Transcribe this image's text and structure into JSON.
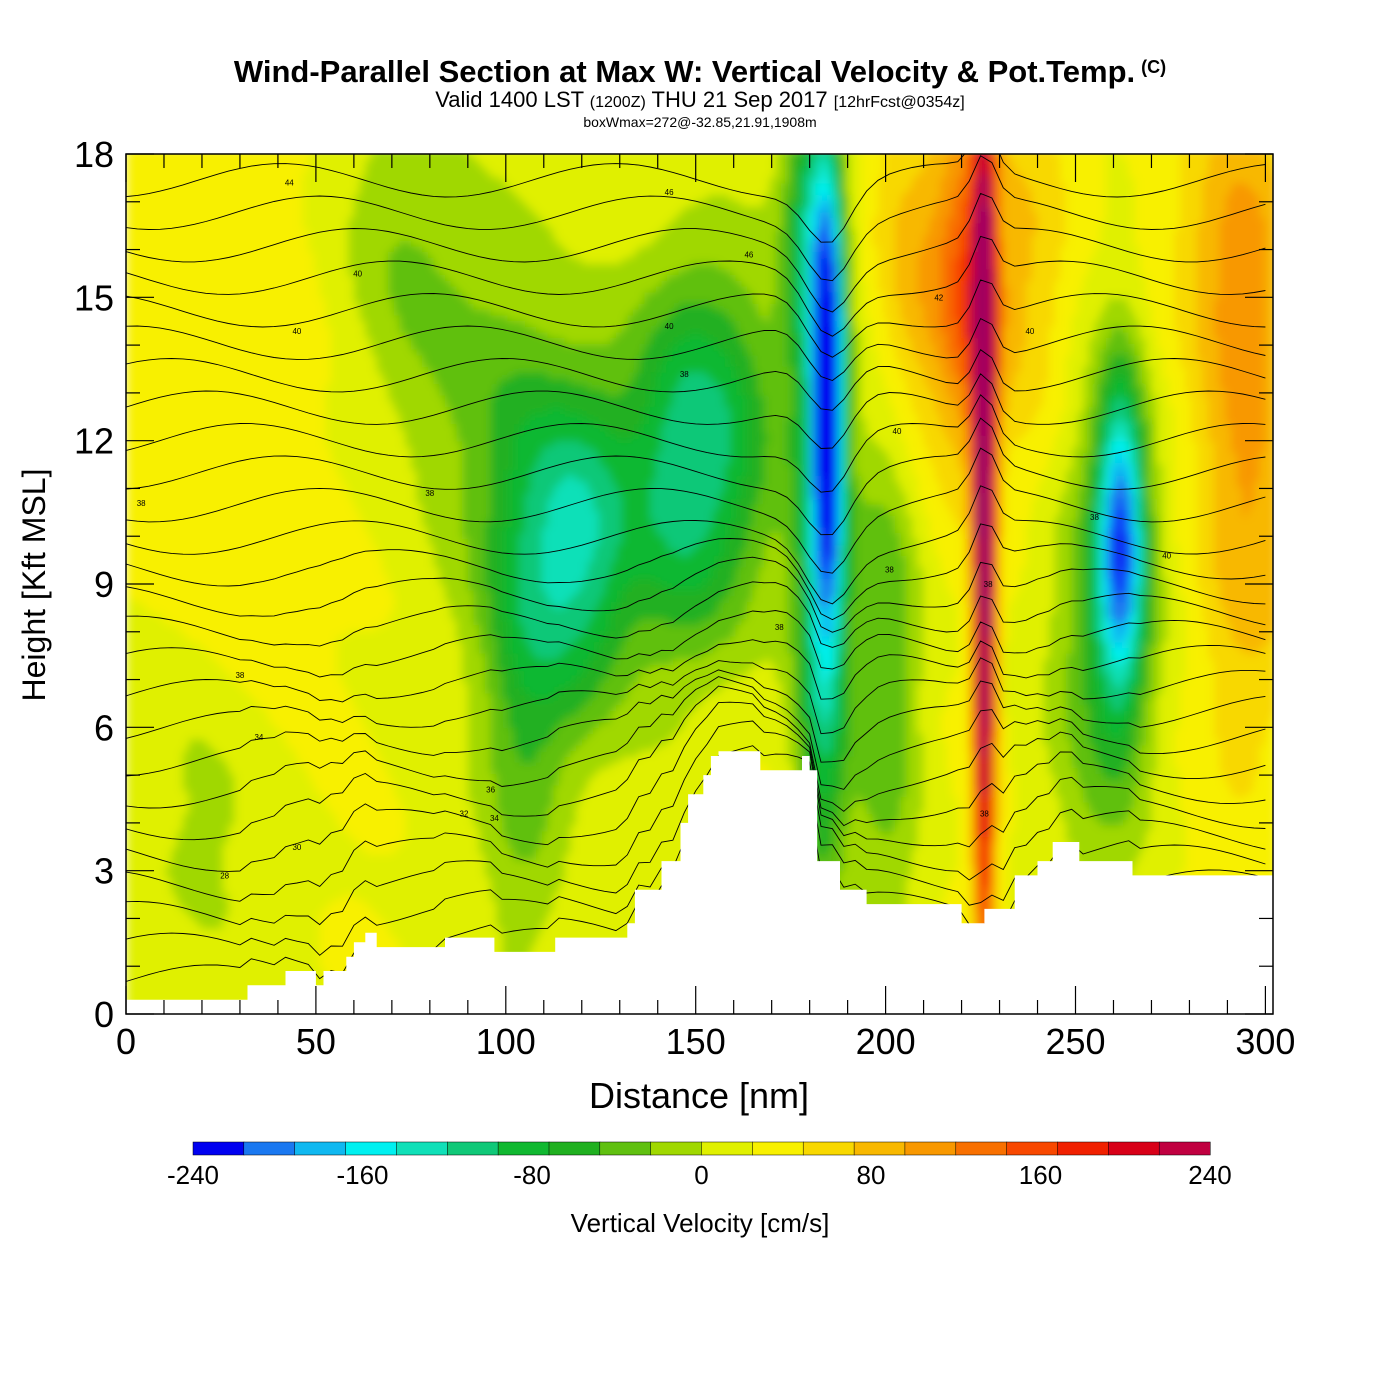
{
  "header": {
    "title": "Wind-Parallel Section at Max W: Vertical Velocity & Pot.Temp.",
    "copyright": "(C)",
    "valid_prefix": "Valid 1400 LST",
    "valid_utc": "(1200Z)",
    "valid_date": "THU 21 Sep 2017",
    "forecast": "[12hrFcst@0354z]",
    "boxwmax": "boxWmax=272@-32.85,21.91,1908m"
  },
  "chart_data": {
    "type": "heatmap",
    "title": "Wind-Parallel Section at Max W: Vertical Velocity & Pot.Temp.",
    "xlabel": "Distance [nm]",
    "ylabel": "Height [Kft MSL]",
    "xlim": [
      0,
      302
    ],
    "ylim": [
      0,
      18
    ],
    "x_ticks": [
      0,
      50,
      100,
      150,
      200,
      250,
      300
    ],
    "y_ticks": [
      0,
      3,
      6,
      9,
      12,
      15,
      18
    ],
    "colorbar": {
      "label": "Vertical Velocity [cm/s]",
      "range": [
        -240,
        240
      ],
      "step": 20,
      "tick_labels": [
        "-240",
        "-160",
        "-80",
        "0",
        "80",
        "160",
        "240"
      ],
      "colors": [
        "#0000f0",
        "#1040f8",
        "#1a78f0",
        "#10b8f0",
        "#00f0f0",
        "#10e0b8",
        "#10c878",
        "#10b830",
        "#20b020",
        "#60c010",
        "#a0d800",
        "#e0f000",
        "#f8f000",
        "#f8d800",
        "#f8b800",
        "#f89800",
        "#f87000",
        "#f84800",
        "#f02000",
        "#d80018",
        "#c00040",
        "#a00060"
      ]
    },
    "terrain_profile": {
      "x": [
        0,
        32,
        32,
        42,
        42,
        50,
        50,
        52,
        52,
        58,
        58,
        60,
        60,
        63,
        63,
        66,
        66,
        84,
        84,
        97,
        97,
        113,
        113,
        132,
        132,
        134,
        134,
        141,
        141,
        146,
        146,
        148,
        148,
        152,
        152,
        154,
        154,
        156,
        156,
        167,
        167,
        178,
        178,
        180,
        180,
        182,
        182,
        188,
        188,
        195,
        195,
        220,
        220,
        226,
        226,
        234,
        234,
        240,
        240,
        244,
        244,
        251,
        251,
        265,
        265,
        275,
        275,
        302
      ],
      "h": [
        0.3,
        0.3,
        0.6,
        0.6,
        0.9,
        0.9,
        0.6,
        0.6,
        0.9,
        0.9,
        1.2,
        1.2,
        1.5,
        1.5,
        1.7,
        1.7,
        1.4,
        1.4,
        1.6,
        1.6,
        1.3,
        1.3,
        1.6,
        1.6,
        1.9,
        1.9,
        2.6,
        2.6,
        3.2,
        3.2,
        4.0,
        4.0,
        4.6,
        4.6,
        5.0,
        5.0,
        5.4,
        5.4,
        5.5,
        5.5,
        5.1,
        5.1,
        5.4,
        5.4,
        5.1,
        5.1,
        3.2,
        3.2,
        2.6,
        2.6,
        2.3,
        2.3,
        1.9,
        1.9,
        2.2,
        2.2,
        2.9,
        2.9,
        3.2,
        3.2,
        3.6,
        3.6,
        3.2,
        3.2,
        2.9,
        2.9,
        2.9,
        2.9
      ]
    },
    "w_features": [
      {
        "name": "updraft-core",
        "x": 227,
        "z_range": [
          2,
          18
        ],
        "w_max": 220
      },
      {
        "name": "downdraft-core",
        "x": 185,
        "z_range": [
          5,
          18
        ],
        "w_min": -200
      },
      {
        "name": "downdraft",
        "x": 262,
        "z_range": [
          4,
          14
        ],
        "w_min": -170
      },
      {
        "name": "downdraft-band",
        "x": 120,
        "z_range": [
          6,
          13
        ],
        "w_min": -120
      }
    ],
    "theta_contour_labels": [
      {
        "text": "44",
        "x": 43,
        "h": 17.4
      },
      {
        "text": "40",
        "x": 61,
        "h": 15.5
      },
      {
        "text": "40",
        "x": 45,
        "h": 14.3
      },
      {
        "text": "38",
        "x": 4,
        "h": 10.7
      },
      {
        "text": "38",
        "x": 80,
        "h": 10.9
      },
      {
        "text": "38",
        "x": 30,
        "h": 7.1
      },
      {
        "text": "34",
        "x": 35,
        "h": 5.8
      },
      {
        "text": "30",
        "x": 45,
        "h": 3.5
      },
      {
        "text": "28",
        "x": 26,
        "h": 2.9
      },
      {
        "text": "36",
        "x": 96,
        "h": 4.7
      },
      {
        "text": "32",
        "x": 89,
        "h": 4.2
      },
      {
        "text": "34",
        "x": 97,
        "h": 4.1
      },
      {
        "text": "46",
        "x": 143,
        "h": 17.2
      },
      {
        "text": "46",
        "x": 164,
        "h": 15.9
      },
      {
        "text": "40",
        "x": 143,
        "h": 14.4
      },
      {
        "text": "38",
        "x": 147,
        "h": 13.4
      },
      {
        "text": "38",
        "x": 172,
        "h": 8.1
      },
      {
        "text": "42",
        "x": 214,
        "h": 15.0
      },
      {
        "text": "40",
        "x": 203,
        "h": 12.2
      },
      {
        "text": "38",
        "x": 201,
        "h": 9.3
      },
      {
        "text": "38",
        "x": 227,
        "h": 9.0
      },
      {
        "text": "40",
        "x": 238,
        "h": 14.3
      },
      {
        "text": "38",
        "x": 255,
        "h": 10.4
      },
      {
        "text": "40",
        "x": 274,
        "h": 9.6
      },
      {
        "text": "38",
        "x": 226,
        "h": 4.2
      }
    ]
  }
}
